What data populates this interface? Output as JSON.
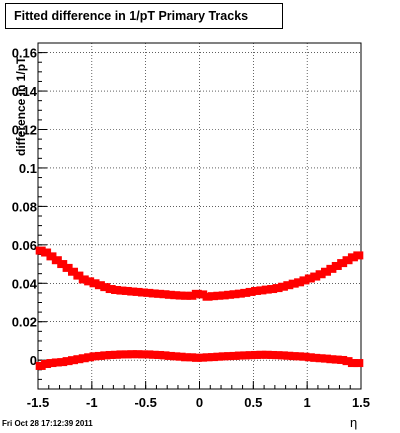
{
  "title": "Fitted difference in 1/pT  Primary Tracks",
  "timestamp": "Fri Oct 28 17:12:39 2011",
  "chart_data": {
    "type": "scatter",
    "title": "Fitted difference in 1/pT  Primary Tracks",
    "xlabel": "η",
    "ylabel": "difference in 1/pT",
    "xlim": [
      -1.5,
      1.5
    ],
    "ylim": [
      -0.015,
      0.165
    ],
    "x_ticks": [
      -1.5,
      -1,
      -0.5,
      0,
      0.5,
      1,
      1.5
    ],
    "x_tick_labels": [
      "-1.5",
      "-1",
      "-0.5",
      "0",
      "0.5",
      "1",
      "1.5"
    ],
    "y_ticks": [
      0,
      0.02,
      0.04,
      0.06,
      0.08,
      0.1,
      0.12,
      0.14,
      0.16
    ],
    "y_tick_labels": [
      "0",
      "0.02",
      "0.04",
      "0.06",
      "0.08",
      "0.1",
      "0.12",
      "0.14",
      "0.16"
    ],
    "grid": true,
    "marker_color": "#ff0000",
    "series": [
      {
        "x": [
          -1.475,
          -1.425,
          -1.375,
          -1.325,
          -1.275,
          -1.225,
          -1.175,
          -1.125,
          -1.075,
          -1.025,
          -0.975,
          -0.925,
          -0.875,
          -0.825,
          -0.775,
          -0.725,
          -0.675,
          -0.625,
          -0.575,
          -0.525,
          -0.475,
          -0.425,
          -0.375,
          -0.325,
          -0.275,
          -0.225,
          -0.175,
          -0.125,
          -0.075,
          -0.025,
          0.025,
          0.075,
          0.125,
          0.175,
          0.225,
          0.275,
          0.325,
          0.375,
          0.425,
          0.475,
          0.525,
          0.575,
          0.625,
          0.675,
          0.725,
          0.775,
          0.825,
          0.875,
          0.925,
          0.975,
          1.025,
          1.075,
          1.125,
          1.175,
          1.225,
          1.275,
          1.325,
          1.375,
          1.425,
          1.475
        ],
        "y": [
          0.057,
          0.056,
          0.054,
          0.052,
          0.05,
          0.048,
          0.046,
          0.044,
          0.042,
          0.041,
          0.04,
          0.039,
          0.038,
          0.037,
          0.0365,
          0.0362,
          0.036,
          0.0357,
          0.0355,
          0.0352,
          0.035,
          0.0347,
          0.0345,
          0.0343,
          0.034,
          0.0338,
          0.0336,
          0.0335,
          0.0335,
          0.0345,
          0.0342,
          0.033,
          0.0333,
          0.0335,
          0.0337,
          0.034,
          0.0343,
          0.0346,
          0.035,
          0.0355,
          0.036,
          0.0363,
          0.0367,
          0.037,
          0.0375,
          0.0382,
          0.039,
          0.0398,
          0.0405,
          0.0415,
          0.0425,
          0.0435,
          0.0447,
          0.046,
          0.0475,
          0.049,
          0.0505,
          0.052,
          0.0535,
          0.0545
        ]
      },
      {
        "x": [
          -1.475,
          -1.425,
          -1.375,
          -1.325,
          -1.275,
          -1.225,
          -1.175,
          -1.125,
          -1.075,
          -1.025,
          -0.975,
          -0.925,
          -0.875,
          -0.825,
          -0.775,
          -0.725,
          -0.675,
          -0.625,
          -0.575,
          -0.525,
          -0.475,
          -0.425,
          -0.375,
          -0.325,
          -0.275,
          -0.225,
          -0.175,
          -0.125,
          -0.075,
          -0.025,
          0.025,
          0.075,
          0.125,
          0.175,
          0.225,
          0.275,
          0.325,
          0.375,
          0.425,
          0.475,
          0.525,
          0.575,
          0.625,
          0.675,
          0.725,
          0.775,
          0.825,
          0.875,
          0.925,
          0.975,
          1.025,
          1.075,
          1.125,
          1.175,
          1.225,
          1.275,
          1.325,
          1.375,
          1.425,
          1.475
        ],
        "y": [
          -0.003,
          -0.002,
          -0.0015,
          -0.0012,
          -0.001,
          -0.0005,
          0.0,
          0.0005,
          0.001,
          0.0015,
          0.002,
          0.0022,
          0.0025,
          0.0027,
          0.0028,
          0.003,
          0.003,
          0.0031,
          0.0031,
          0.003,
          0.003,
          0.0028,
          0.0027,
          0.0025,
          0.0022,
          0.002,
          0.0018,
          0.0015,
          0.0015,
          0.0012,
          0.0013,
          0.0015,
          0.0016,
          0.0018,
          0.002,
          0.0021,
          0.0022,
          0.0024,
          0.0025,
          0.0026,
          0.0027,
          0.0028,
          0.0028,
          0.0027,
          0.0026,
          0.0025,
          0.0023,
          0.0021,
          0.002,
          0.0018,
          0.0015,
          0.0012,
          0.001,
          0.0008,
          0.0005,
          0.0003,
          0.0001,
          -0.0005,
          -0.0015,
          -0.0015
        ]
      }
    ]
  }
}
